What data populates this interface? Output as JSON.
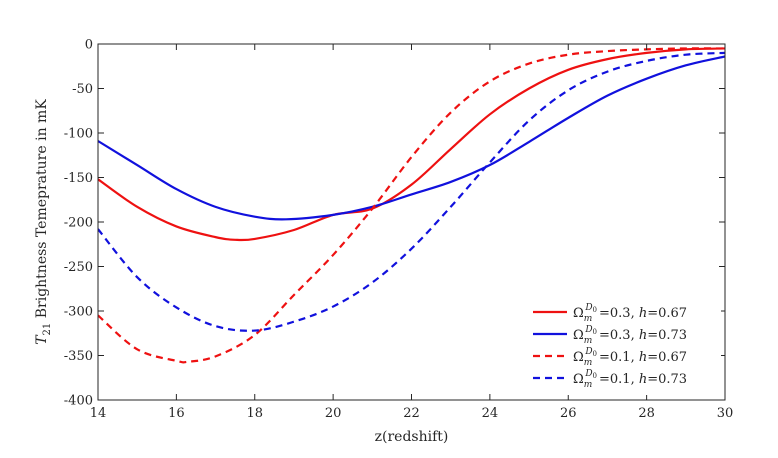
{
  "chart_data": {
    "type": "line",
    "title": "",
    "xlabel": "z(redshift)",
    "ylabel_symbol": "T",
    "ylabel_subscript": "21",
    "ylabel_rest": " Brightness Temeprature in mK",
    "xlim": [
      14,
      30
    ],
    "ylim": [
      -400,
      0
    ],
    "x_ticks": [
      14,
      16,
      18,
      20,
      22,
      24,
      26,
      28,
      30
    ],
    "y_ticks": [
      0,
      -50,
      -100,
      -150,
      -200,
      -250,
      -300,
      -350,
      -400
    ],
    "grid": false,
    "legend_position": "bottom-right",
    "series": [
      {
        "name": "Ω_m^{D0} =0.3, h=0.67",
        "legend_omega_value": "=0.3, ",
        "legend_h_value": "=0.67",
        "color": "#ee1111",
        "dashed": false,
        "x": [
          14,
          15,
          16,
          17,
          17.5,
          18,
          19,
          20,
          21,
          22,
          23,
          24,
          25,
          26,
          27,
          28,
          29,
          30
        ],
        "y": [
          -152,
          -183,
          -205,
          -217,
          -220,
          -219,
          -209,
          -192,
          -185,
          -158,
          -118,
          -79,
          -50,
          -29,
          -17,
          -10,
          -6,
          -5
        ]
      },
      {
        "name": "Ω_m^{D0} =0.3, h=0.73",
        "legend_omega_value": "=0.3, ",
        "legend_h_value": "=0.73",
        "color": "#1111dd",
        "dashed": false,
        "x": [
          14,
          15,
          16,
          17,
          18,
          18.8,
          20,
          21,
          22,
          23,
          24,
          25,
          26,
          27,
          28,
          29,
          30
        ],
        "y": [
          -109,
          -136,
          -163,
          -183,
          -194,
          -197,
          -192,
          -183,
          -169,
          -155,
          -136,
          -110,
          -83,
          -58,
          -39,
          -24,
          -14
        ]
      },
      {
        "name": "Ω_m^{D0} =0.1, h=0.67",
        "legend_omega_value": "=0.1, ",
        "legend_h_value": "=0.67",
        "color": "#ee1111",
        "dashed": true,
        "x": [
          14,
          15,
          16,
          16.3,
          17,
          18,
          19,
          20,
          21,
          22,
          23,
          24,
          25,
          26,
          27,
          28,
          29,
          30
        ],
        "y": [
          -305,
          -343,
          -356,
          -357,
          -351,
          -327,
          -282,
          -237,
          -185,
          -127,
          -77,
          -42,
          -22,
          -12,
          -8,
          -6,
          -5,
          -5
        ]
      },
      {
        "name": "Ω_m^{D0} =0.1, h=0.73",
        "legend_omega_value": "=0.1, ",
        "legend_h_value": "=0.73",
        "color": "#1111dd",
        "dashed": true,
        "x": [
          14,
          15,
          16,
          17,
          18,
          19,
          20,
          21,
          22,
          23,
          24,
          25,
          26,
          27,
          28,
          29,
          30
        ],
        "y": [
          -208,
          -262,
          -296,
          -317,
          -322,
          -312,
          -295,
          -268,
          -230,
          -183,
          -133,
          -86,
          -52,
          -31,
          -19,
          -12,
          -10
        ]
      }
    ]
  }
}
